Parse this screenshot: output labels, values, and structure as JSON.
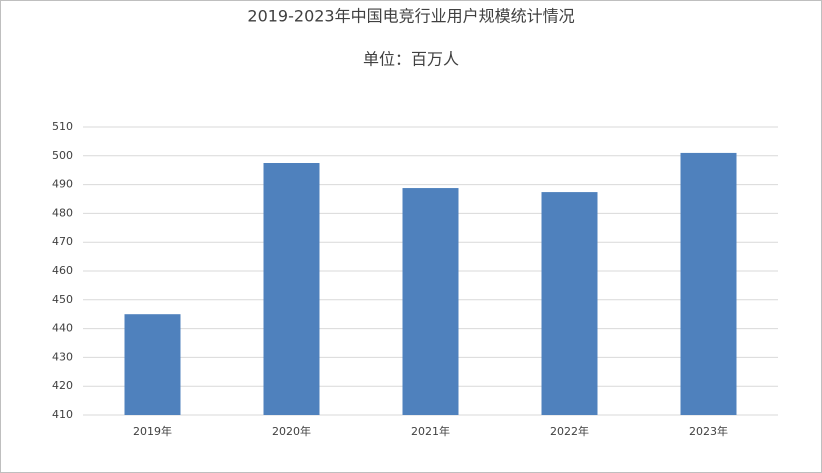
{
  "chart_data": {
    "type": "bar",
    "title": "2019-2023年中国电竞行业用户规模统计情况",
    "subtitle": "单位：百万人",
    "categories": [
      "2019年",
      "2020年",
      "2021年",
      "2022年",
      "2023年"
    ],
    "values": [
      445,
      497.5,
      488.8,
      487.4,
      501
    ],
    "color": "#4f81bd",
    "ylim": [
      410,
      510
    ],
    "yticks": [
      410,
      420,
      430,
      440,
      450,
      460,
      470,
      480,
      490,
      500,
      510
    ],
    "grid": true
  }
}
